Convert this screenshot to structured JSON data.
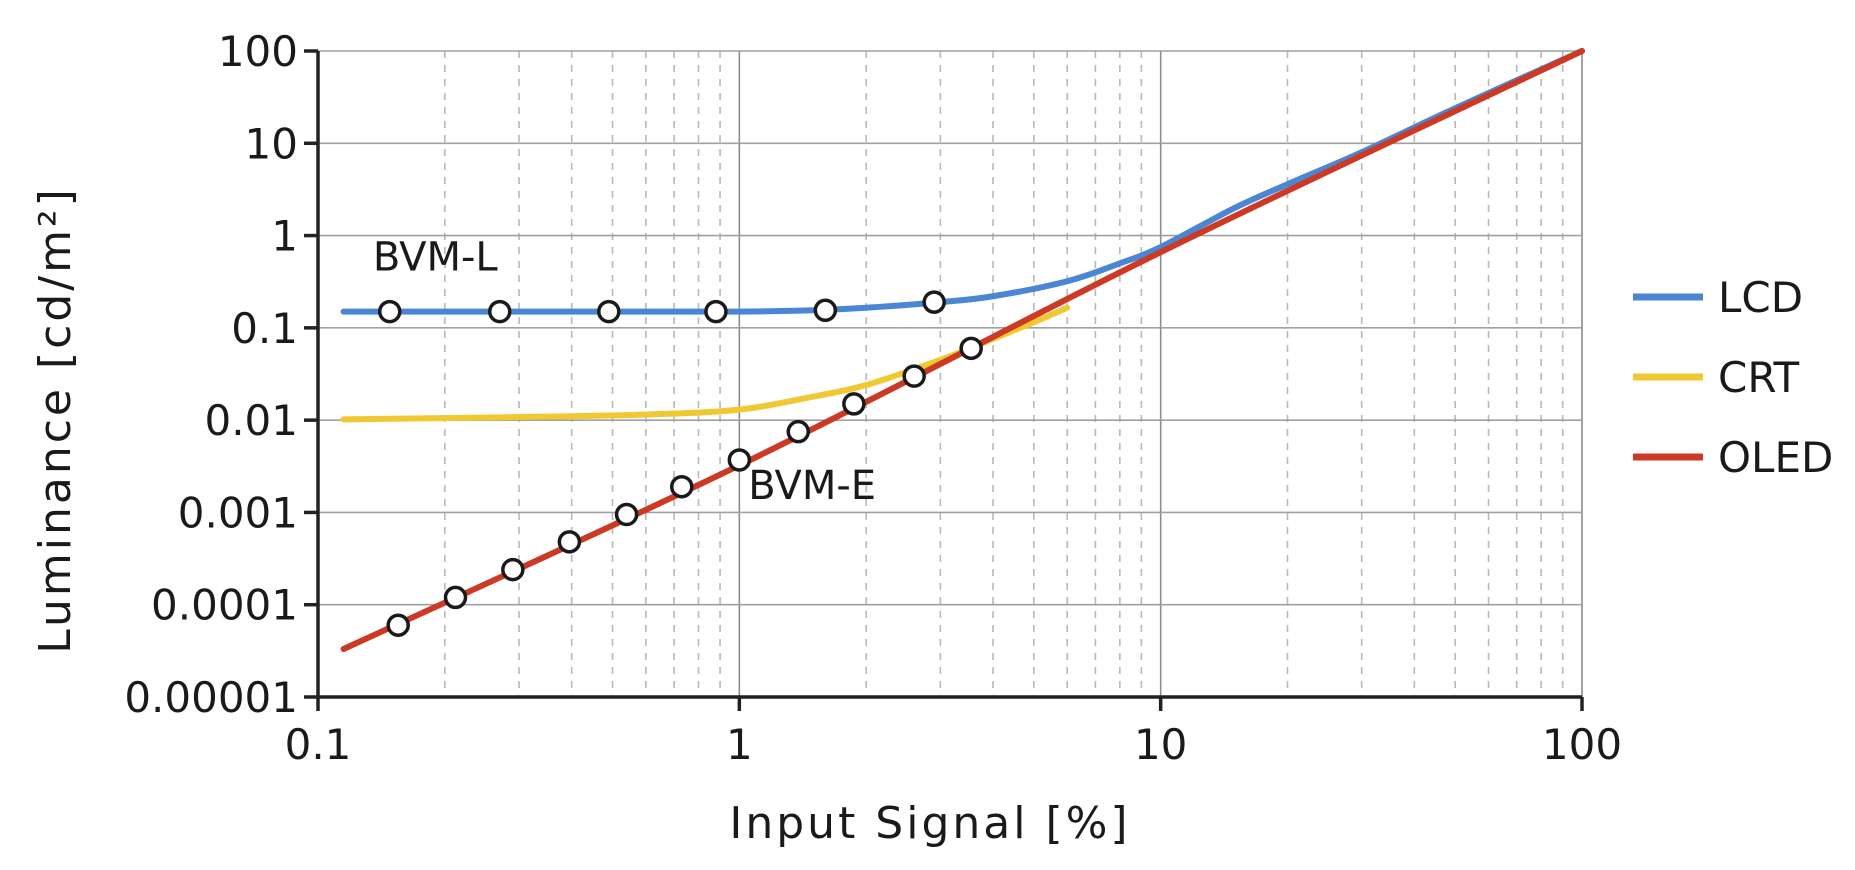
{
  "chart_data": {
    "type": "line",
    "title": "",
    "xlabel": "Input Signal [%]",
    "ylabel": "Luminance [cd/m²]",
    "xscale": "log",
    "yscale": "log",
    "xlim": [
      0.1,
      100
    ],
    "ylim": [
      1e-05,
      100
    ],
    "grid": true,
    "xticks": [
      0.1,
      1,
      10,
      100
    ],
    "xtick_labels": [
      "0.1",
      "1",
      "10",
      "100"
    ],
    "yticks": [
      1e-05,
      0.0001,
      0.001,
      0.01,
      0.1,
      1,
      10,
      100
    ],
    "ytick_labels": [
      "0.00001",
      "0.0001",
      "0.001",
      "0.01",
      "0.1",
      "1",
      "10",
      "100"
    ],
    "legend_position": "right",
    "series": [
      {
        "name": "LCD",
        "color": "#4a86d4",
        "x": [
          0.115,
          0.2,
          0.5,
          1,
          1.5,
          2,
          3,
          4,
          6,
          8,
          10,
          15,
          20,
          30,
          50,
          100
        ],
        "y": [
          0.15,
          0.15,
          0.15,
          0.15,
          0.155,
          0.165,
          0.19,
          0.22,
          0.32,
          0.5,
          0.75,
          2.0,
          3.6,
          8.0,
          24,
          100
        ]
      },
      {
        "name": "CRT",
        "color": "#f0c832",
        "x": [
          0.115,
          0.3,
          0.6,
          1,
          1.5,
          2,
          3,
          4,
          5,
          6
        ],
        "y": [
          0.0102,
          0.0108,
          0.0115,
          0.013,
          0.018,
          0.024,
          0.045,
          0.076,
          0.115,
          0.165
        ]
      },
      {
        "name": "OLED",
        "color": "#cc3a25",
        "x": [
          0.115,
          1,
          10,
          100
        ],
        "y": [
          3.31e-05,
          0.00324,
          0.661,
          100
        ]
      }
    ],
    "markers": [
      {
        "series": "BVM-L",
        "x": [
          0.148,
          0.27,
          0.49,
          0.88,
          1.6,
          2.9
        ],
        "y": [
          0.15,
          0.15,
          0.15,
          0.15,
          0.155,
          0.19
        ]
      },
      {
        "series": "BVM-E",
        "x": [
          0.155,
          0.212,
          0.29,
          0.395,
          0.54,
          0.73,
          1.0,
          1.38,
          1.87,
          2.6,
          3.55
        ],
        "y": [
          6e-05,
          0.00012,
          0.00024,
          0.00048,
          0.00095,
          0.0019,
          0.0037,
          0.0075,
          0.015,
          0.03,
          0.06
        ]
      }
    ],
    "annotations": [
      {
        "text": "BVM-L",
        "x": 0.135,
        "y": 0.42
      },
      {
        "text": "BVM-E",
        "x": 1.05,
        "y": 0.0014
      }
    ]
  }
}
